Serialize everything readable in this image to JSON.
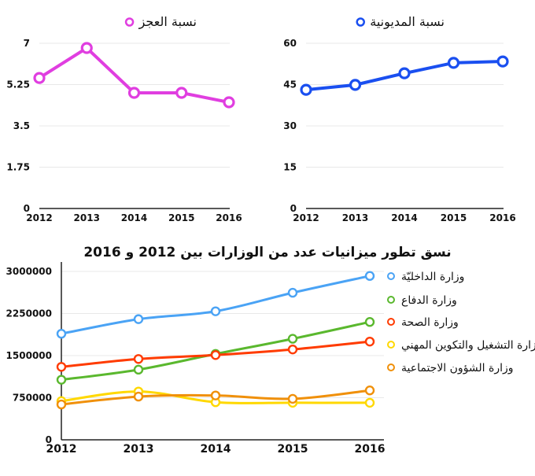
{
  "chart_data": [
    {
      "type": "line",
      "legend": "نسبة العجز",
      "x": [
        2012,
        2013,
        2014,
        2015,
        2016
      ],
      "series": [
        {
          "name": "نسبة العجز",
          "color": "#e03ee0",
          "values": [
            5.53,
            6.8,
            4.9,
            4.9,
            4.5
          ]
        }
      ],
      "ylim": [
        0,
        7
      ],
      "yticks": [
        "0",
        "1.75",
        "3.5",
        "5.25",
        "7"
      ],
      "grid": true,
      "legend_placement": "top"
    },
    {
      "type": "line",
      "legend": "نسبة المديونية",
      "x": [
        2012,
        2013,
        2014,
        2015,
        2016
      ],
      "series": [
        {
          "name": "نسبة المديونية",
          "color": "#1a4ff0",
          "values": [
            43.1,
            44.9,
            49.1,
            52.9,
            53.4
          ]
        }
      ],
      "ylim": [
        0,
        60
      ],
      "yticks": [
        "0",
        "15",
        "30",
        "45",
        "60"
      ],
      "grid": true,
      "legend_placement": "top"
    },
    {
      "type": "line",
      "title": "نسق تطور ميزانيات عدد من الوزارات بين 2012  و 2016",
      "x": [
        2012,
        2013,
        2014,
        2015,
        2016
      ],
      "series": [
        {
          "name": "وزارة الداخليّة",
          "color": "#4aa3f5",
          "values": [
            1890000,
            2150000,
            2290000,
            2620000,
            2920000
          ]
        },
        {
          "name": "وزارة الدفاع",
          "color": "#5ab82e",
          "values": [
            1070000,
            1250000,
            1530000,
            1800000,
            2100000
          ]
        },
        {
          "name": "وزارة الصحة",
          "color": "#ff3b00",
          "values": [
            1300000,
            1440000,
            1510000,
            1610000,
            1750000
          ]
        },
        {
          "name": "وزارة التشغيل والتكوين المهني",
          "color": "#ffd800",
          "values": [
            690000,
            860000,
            670000,
            660000,
            660000
          ]
        },
        {
          "name": "وزارة الشؤون الاجتماعية",
          "color": "#f0900a",
          "values": [
            630000,
            770000,
            790000,
            730000,
            880000
          ]
        }
      ],
      "ylim": [
        0,
        3000000
      ],
      "yticks": [
        "0",
        "750000",
        "1500000",
        "2250000",
        "3000000"
      ],
      "grid": true,
      "smooth": true,
      "legend_placement": "right"
    }
  ]
}
